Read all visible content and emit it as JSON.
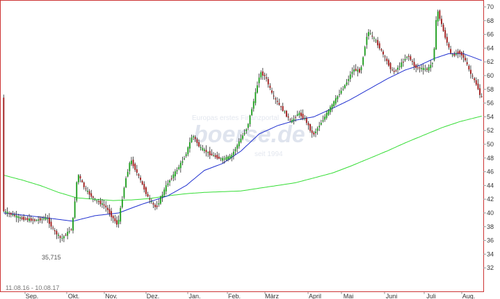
{
  "chart_data": {
    "type": "candlestick",
    "date_range_label": "11.08.16 - 10.08.17",
    "x_month_labels": [
      "Sep.",
      "Okt.",
      "Nov.",
      "Dez.",
      "Jan.",
      "Feb.",
      "März",
      "April",
      "Mai",
      "Juni",
      "Juli",
      "Aug."
    ],
    "y_tick_labels": [
      "32",
      "34",
      "36",
      "38",
      "40",
      "42",
      "44",
      "46",
      "48",
      "50",
      "52",
      "54",
      "56",
      "58",
      "60",
      "62",
      "64",
      "66",
      "68",
      "70"
    ],
    "ylim": [
      30.4,
      70.4
    ],
    "grid": false,
    "low_annotation": "35,715",
    "watermark": {
      "brand": "boerse.de",
      "line1": "Europas erstes Finanzportal",
      "line2": "seit 1994"
    },
    "colors": {
      "up": "#1f9e1f",
      "down": "#a01c1c",
      "wick": "#222222",
      "ma_fast": "#1f2fd0",
      "ma_slow": "#33dd33",
      "frame": "#cc3333"
    },
    "price_anchors": [
      [
        0,
        40.3
      ],
      [
        10,
        39.2
      ],
      [
        18,
        38.9
      ],
      [
        24,
        39.3
      ],
      [
        28,
        37.4
      ],
      [
        32,
        36.2
      ],
      [
        38,
        37.8
      ],
      [
        41,
        45.8
      ],
      [
        45,
        43.5
      ],
      [
        50,
        42.0
      ],
      [
        56,
        41.0
      ],
      [
        63,
        38.2
      ],
      [
        67,
        44.5
      ],
      [
        70,
        47.8
      ],
      [
        75,
        45.0
      ],
      [
        80,
        42.0
      ],
      [
        84,
        40.7
      ],
      [
        90,
        44.2
      ],
      [
        96,
        46.5
      ],
      [
        100,
        48.3
      ],
      [
        104,
        51.4
      ],
      [
        108,
        49.5
      ],
      [
        114,
        48.5
      ],
      [
        120,
        47.8
      ],
      [
        125,
        48.2
      ],
      [
        128,
        49.6
      ],
      [
        134,
        52.5
      ],
      [
        138,
        56.8
      ],
      [
        141,
        60.5
      ],
      [
        144,
        59.8
      ],
      [
        148,
        57.0
      ],
      [
        154,
        54.8
      ],
      [
        158,
        53.2
      ],
      [
        162,
        54.6
      ],
      [
        166,
        53.5
      ],
      [
        170,
        51.3
      ],
      [
        176,
        53.8
      ],
      [
        180,
        55.5
      ],
      [
        184,
        57.2
      ],
      [
        188,
        58.8
      ],
      [
        192,
        60.9
      ],
      [
        196,
        60.6
      ],
      [
        200,
        66.5
      ],
      [
        205,
        64.8
      ],
      [
        210,
        62.3
      ],
      [
        214,
        60.4
      ],
      [
        218,
        61.6
      ],
      [
        222,
        63.0
      ],
      [
        226,
        61.2
      ],
      [
        230,
        61.0
      ],
      [
        233,
        60.9
      ],
      [
        236,
        62.2
      ],
      [
        238,
        69.8
      ],
      [
        242,
        66.0
      ],
      [
        246,
        62.8
      ],
      [
        250,
        63.5
      ],
      [
        253,
        62.5
      ],
      [
        256,
        60.5
      ],
      [
        260,
        58.5
      ],
      [
        262,
        56.8
      ]
    ],
    "ma_fast": [
      [
        0,
        40.0
      ],
      [
        20,
        39.4
      ],
      [
        38,
        38.8
      ],
      [
        50,
        39.6
      ],
      [
        63,
        40.0
      ],
      [
        75,
        41.2
      ],
      [
        90,
        42.5
      ],
      [
        100,
        44.0
      ],
      [
        110,
        46.2
      ],
      [
        120,
        47.2
      ],
      [
        130,
        49.0
      ],
      [
        140,
        51.5
      ],
      [
        150,
        52.7
      ],
      [
        160,
        53.5
      ],
      [
        170,
        54.0
      ],
      [
        180,
        55.2
      ],
      [
        190,
        56.5
      ],
      [
        200,
        58.0
      ],
      [
        210,
        59.5
      ],
      [
        220,
        60.8
      ],
      [
        228,
        61.5
      ],
      [
        236,
        62.5
      ],
      [
        244,
        63.2
      ],
      [
        252,
        63.2
      ],
      [
        256,
        62.8
      ],
      [
        262,
        62.2
      ]
    ],
    "ma_slow": [
      [
        0,
        45.5
      ],
      [
        10,
        44.8
      ],
      [
        20,
        44.0
      ],
      [
        30,
        43.0
      ],
      [
        40,
        42.2
      ],
      [
        50,
        42.0
      ],
      [
        60,
        41.8
      ],
      [
        70,
        41.9
      ],
      [
        80,
        42.1
      ],
      [
        90,
        42.5
      ],
      [
        100,
        42.8
      ],
      [
        110,
        43.0
      ],
      [
        120,
        43.1
      ],
      [
        130,
        43.2
      ],
      [
        140,
        43.6
      ],
      [
        150,
        44.0
      ],
      [
        160,
        44.4
      ],
      [
        170,
        45.1
      ],
      [
        180,
        45.8
      ],
      [
        190,
        46.8
      ],
      [
        200,
        47.9
      ],
      [
        210,
        49.0
      ],
      [
        220,
        50.2
      ],
      [
        230,
        51.3
      ],
      [
        240,
        52.4
      ],
      [
        250,
        53.3
      ],
      [
        262,
        54.1
      ]
    ]
  }
}
